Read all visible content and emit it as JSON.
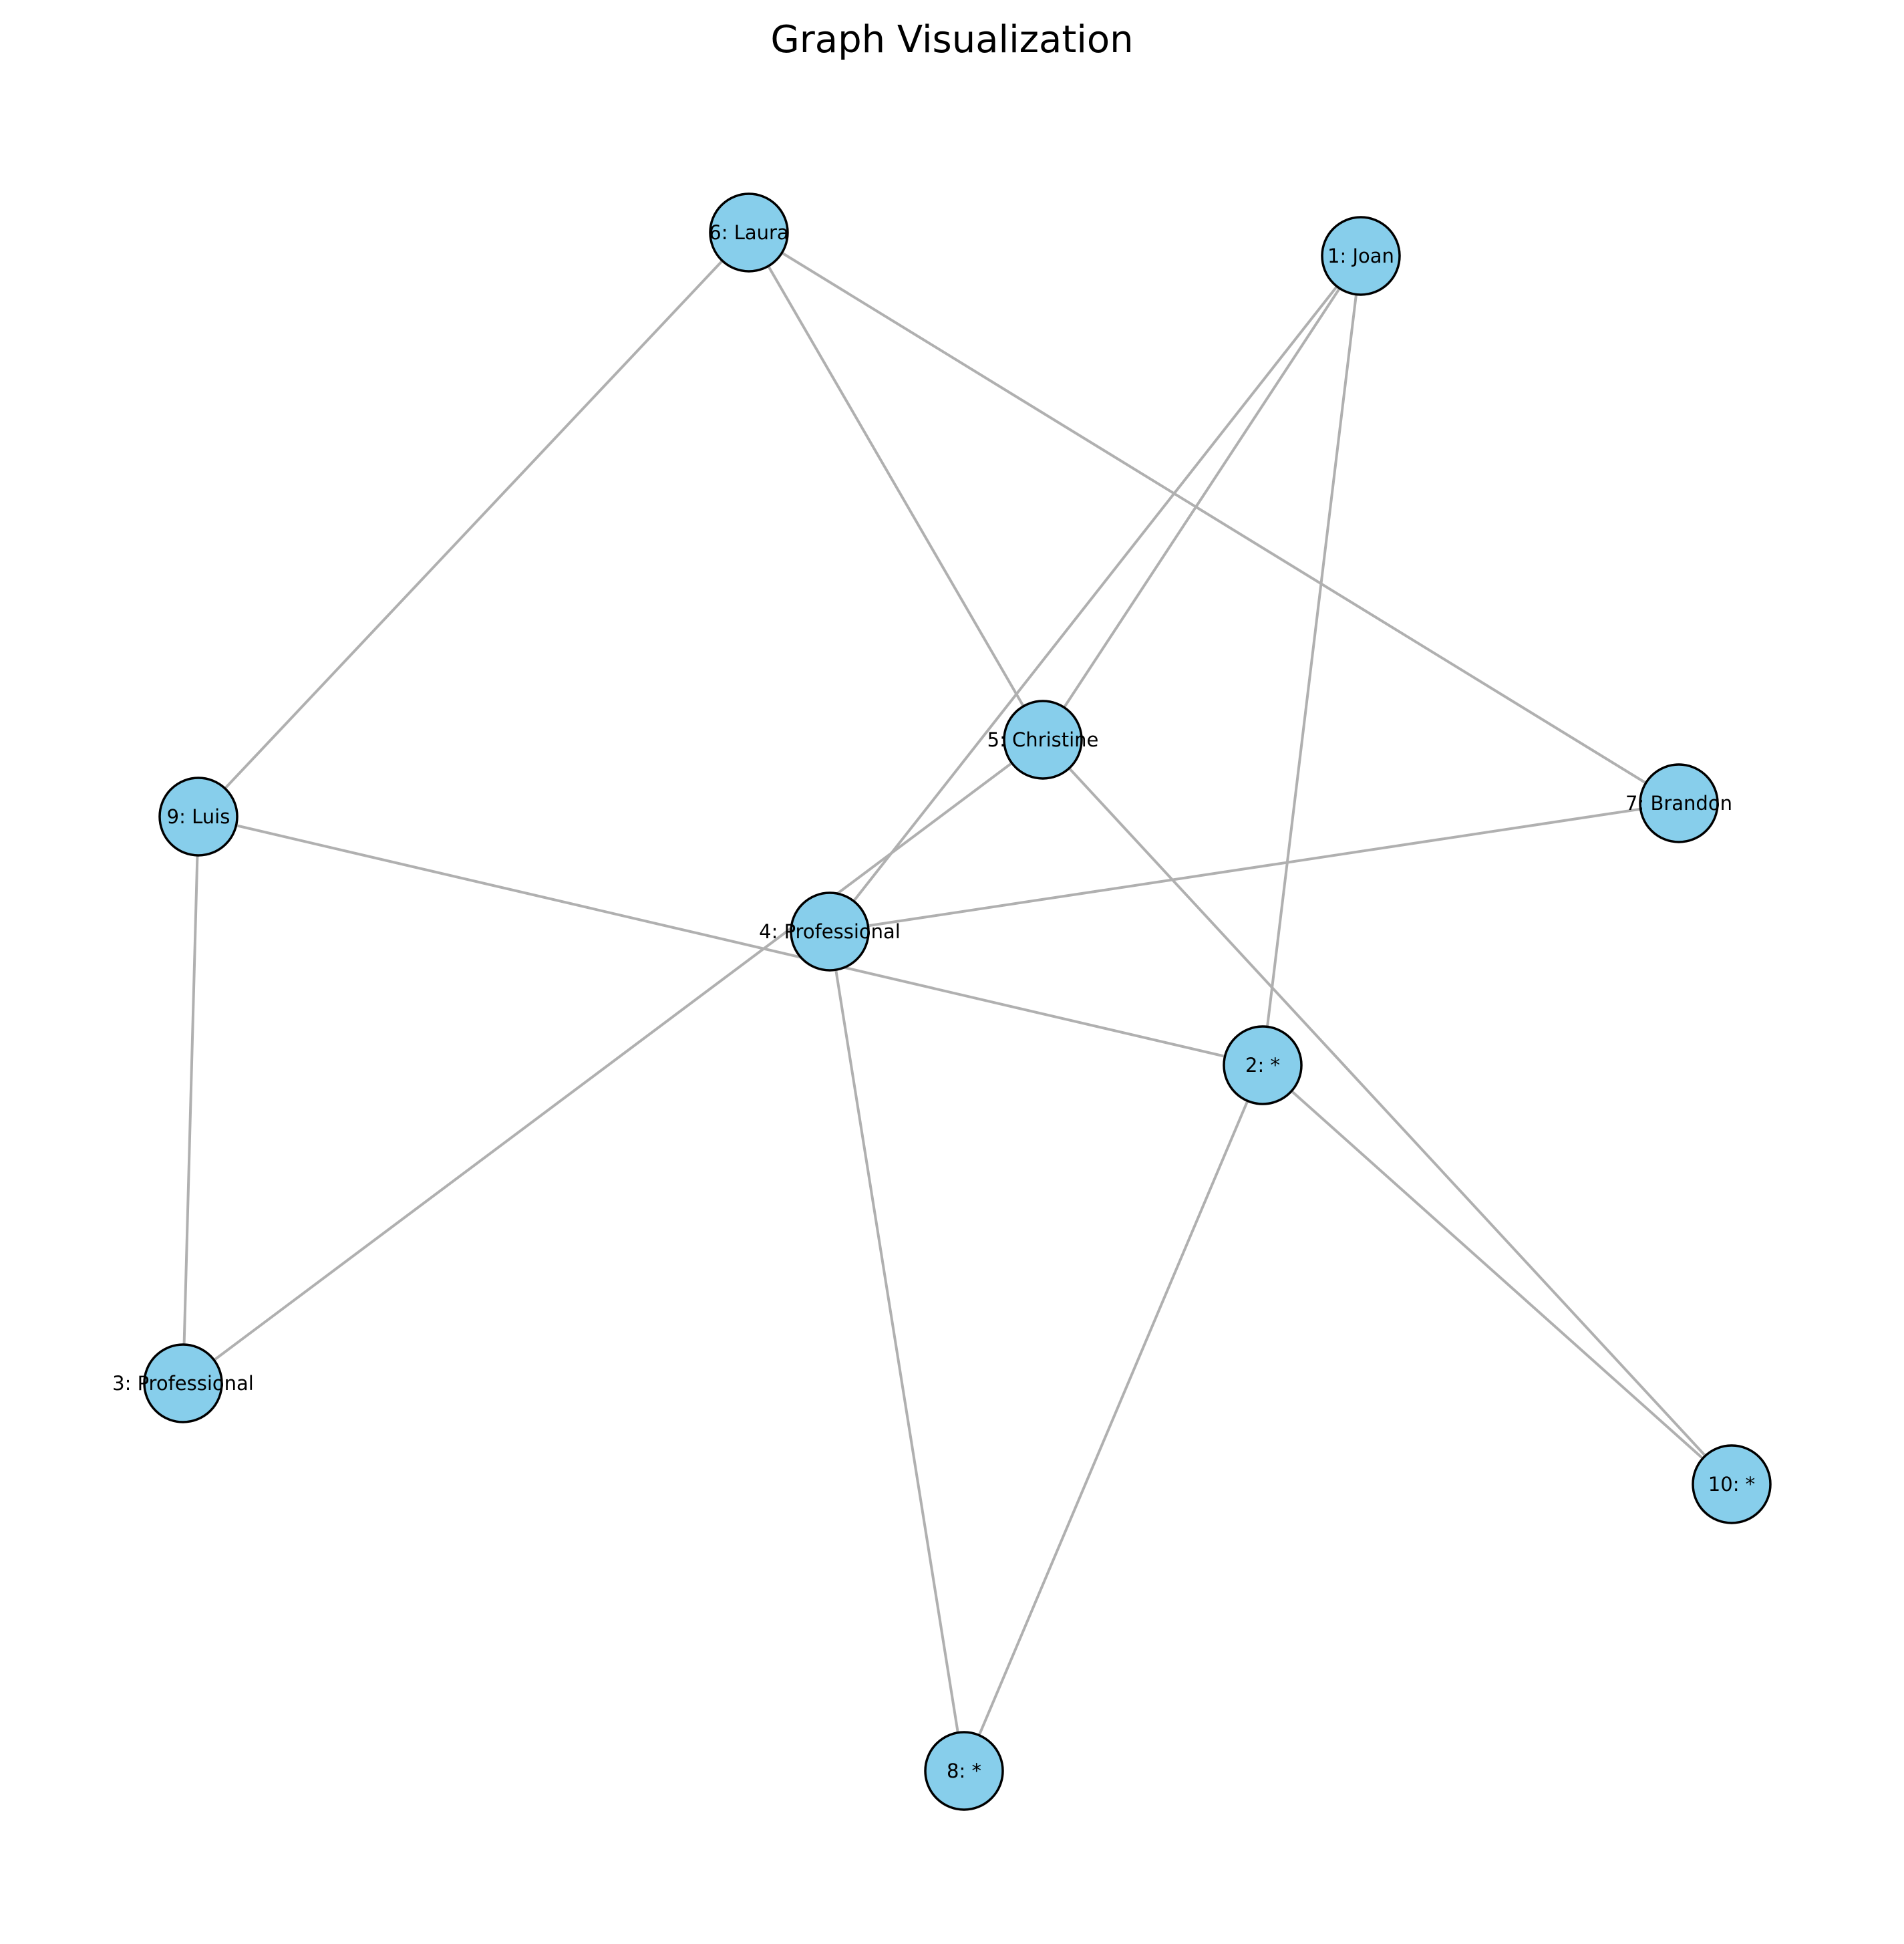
{
  "title": "Graph Visualization",
  "colors": {
    "node_fill": "#87ceeb",
    "node_stroke": "#000000",
    "edge": "#b0b0b0",
    "background": "#ffffff"
  },
  "nodes": [
    {
      "id": "1",
      "label": "1: Joan"
    },
    {
      "id": "2",
      "label": "2: *"
    },
    {
      "id": "3",
      "label": "3: Professional"
    },
    {
      "id": "4",
      "label": "4: Professional"
    },
    {
      "id": "5",
      "label": "5: Christine"
    },
    {
      "id": "6",
      "label": "6: Laura"
    },
    {
      "id": "7",
      "label": "7: Brandon"
    },
    {
      "id": "8",
      "label": "8: *"
    },
    {
      "id": "9",
      "label": "9: Luis"
    },
    {
      "id": "10",
      "label": "10: *"
    }
  ],
  "edges": [
    {
      "source": "6",
      "target": "9"
    },
    {
      "source": "6",
      "target": "5"
    },
    {
      "source": "6",
      "target": "7"
    },
    {
      "source": "1",
      "target": "4"
    },
    {
      "source": "1",
      "target": "5"
    },
    {
      "source": "1",
      "target": "2"
    },
    {
      "source": "5",
      "target": "3"
    },
    {
      "source": "5",
      "target": "10"
    },
    {
      "source": "7",
      "target": "4"
    },
    {
      "source": "9",
      "target": "2"
    },
    {
      "source": "9",
      "target": "3"
    },
    {
      "source": "4",
      "target": "8"
    },
    {
      "source": "2",
      "target": "8"
    },
    {
      "source": "2",
      "target": "10"
    }
  ]
}
